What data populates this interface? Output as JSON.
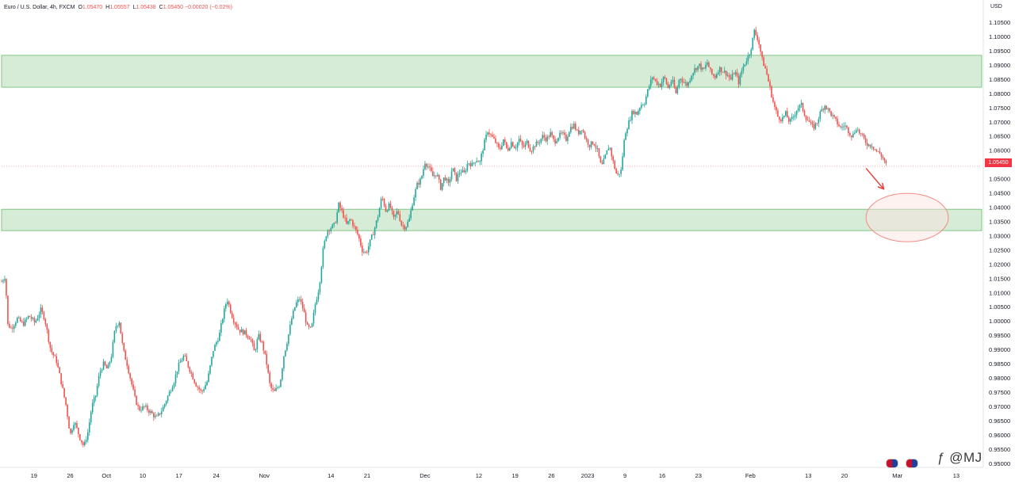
{
  "legend": {
    "symbol": "Euro / U.S. Dollar, 4h, FXCM",
    "open_label": "O",
    "open": "1.05470",
    "high_label": "H",
    "high": "1.05557",
    "low_label": "L",
    "low": "1.05438",
    "close_label": "C",
    "close": "1.05450",
    "change": "−0.00020 (−0.02%)"
  },
  "axis_unit": "USD",
  "current_price_label": "1.05450",
  "watermark": "@MJ",
  "colors": {
    "up": "#26a69a",
    "down": "#ef5350",
    "zone_fill": "#c8e6c9",
    "zone_border": "#66bb6a",
    "arrow": "#e53935",
    "target": "#f28b82"
  },
  "icons": [
    "flag-eu-us-icon",
    "flag-eu-us-icon-2",
    "tradingview-logo-icon"
  ],
  "chart_data": {
    "type": "candlestick",
    "y_label": "USD",
    "ylim": [
      0.9523,
      1.1085
    ],
    "y_ticks": [
      "1.10500",
      "1.10000",
      "1.09500",
      "1.09000",
      "1.08500",
      "1.08000",
      "1.07500",
      "1.07000",
      "1.06500",
      "1.06000",
      "1.05500",
      "1.05000",
      "1.04500",
      "1.04000",
      "1.03500",
      "1.03000",
      "1.02500",
      "1.02000",
      "1.01500",
      "1.01000",
      "1.00500",
      "1.00000",
      "0.99500",
      "0.99000",
      "0.98500",
      "0.98000",
      "0.97500",
      "0.97000",
      "0.96500",
      "0.96000",
      "0.95500",
      "0.95000"
    ],
    "x_ticks": [
      "19",
      "26",
      "Oct",
      "10",
      "17",
      "24",
      "Nov",
      "14",
      "21",
      "Dec",
      "12",
      "19",
      "26",
      "2023",
      "9",
      "16",
      "23",
      "Feb",
      "13",
      "20",
      "Mar",
      "13"
    ],
    "x_range": [
      0,
      1000
    ],
    "x_tick_positions": [
      33,
      70,
      107,
      144,
      181,
      219,
      268,
      336,
      373,
      432,
      487,
      524,
      561,
      598,
      636,
      674,
      711,
      764,
      823,
      860,
      914,
      974
    ],
    "zones": [
      {
        "name": "supply-zone",
        "y_top": 1.0935,
        "y_bottom": 1.0823
      },
      {
        "name": "demand-zone",
        "y_top": 1.0394,
        "y_bottom": 1.0319
      }
    ],
    "target_ellipse": {
      "x_center": 924,
      "y_center": 1.0365,
      "x_halfwidth": 42,
      "y_halfheight": 0.0085
    },
    "arrow": {
      "from": [
        882,
        1.0538
      ],
      "to": [
        900,
        1.0465
      ]
    },
    "current_price": 1.0545,
    "path": [
      [
        0,
        1.014
      ],
      [
        4,
        1.016
      ],
      [
        6,
        0.999
      ],
      [
        10,
        0.9975
      ],
      [
        16,
        1.001
      ],
      [
        22,
        0.999
      ],
      [
        28,
        1.002
      ],
      [
        34,
        0.9995
      ],
      [
        40,
        1.004
      ],
      [
        44,
        1.001
      ],
      [
        50,
        0.99
      ],
      [
        56,
        0.986
      ],
      [
        60,
        0.98
      ],
      [
        66,
        0.97
      ],
      [
        70,
        0.96
      ],
      [
        74,
        0.965
      ],
      [
        80,
        0.959
      ],
      [
        84,
        0.956
      ],
      [
        88,
        0.961
      ],
      [
        92,
        0.97
      ],
      [
        96,
        0.974
      ],
      [
        100,
        0.982
      ],
      [
        104,
        0.985
      ],
      [
        108,
        0.983
      ],
      [
        112,
        0.988
      ],
      [
        116,
        0.998
      ],
      [
        120,
        1.0
      ],
      [
        124,
        0.99
      ],
      [
        128,
        0.985
      ],
      [
        132,
        0.979
      ],
      [
        136,
        0.973
      ],
      [
        140,
        0.969
      ],
      [
        146,
        0.97
      ],
      [
        152,
        0.968
      ],
      [
        158,
        0.966
      ],
      [
        164,
        0.969
      ],
      [
        170,
        0.974
      ],
      [
        176,
        0.979
      ],
      [
        180,
        0.984
      ],
      [
        186,
        0.988
      ],
      [
        192,
        0.983
      ],
      [
        198,
        0.978
      ],
      [
        204,
        0.975
      ],
      [
        210,
        0.979
      ],
      [
        216,
        0.99
      ],
      [
        222,
        0.995
      ],
      [
        226,
        1.002
      ],
      [
        230,
        1.008
      ],
      [
        236,
        1.001
      ],
      [
        242,
        0.997
      ],
      [
        248,
        0.996
      ],
      [
        254,
        0.994
      ],
      [
        258,
        0.989
      ],
      [
        262,
        0.995
      ],
      [
        266,
        0.992
      ],
      [
        270,
        0.986
      ],
      [
        274,
        0.977
      ],
      [
        278,
        0.975
      ],
      [
        284,
        0.978
      ],
      [
        288,
        0.988
      ],
      [
        292,
        0.994
      ],
      [
        296,
        1.001
      ],
      [
        300,
        1.006
      ],
      [
        304,
        1.008
      ],
      [
        308,
        1.004
      ],
      [
        312,
        0.998
      ],
      [
        316,
        0.997
      ],
      [
        320,
        1.006
      ],
      [
        324,
        1.012
      ],
      [
        328,
        1.025
      ],
      [
        332,
        1.032
      ],
      [
        336,
        1.033
      ],
      [
        340,
        1.034
      ],
      [
        344,
        1.041
      ],
      [
        348,
        1.038
      ],
      [
        352,
        1.034
      ],
      [
        356,
        1.036
      ],
      [
        360,
        1.033
      ],
      [
        364,
        1.03
      ],
      [
        368,
        1.025
      ],
      [
        372,
        1.024
      ],
      [
        376,
        1.028
      ],
      [
        380,
        1.032
      ],
      [
        384,
        1.037
      ],
      [
        388,
        1.044
      ],
      [
        392,
        1.039
      ],
      [
        396,
        1.041
      ],
      [
        400,
        1.036
      ],
      [
        404,
        1.039
      ],
      [
        408,
        1.034
      ],
      [
        412,
        1.033
      ],
      [
        416,
        1.036
      ],
      [
        420,
        1.043
      ],
      [
        424,
        1.048
      ],
      [
        428,
        1.05
      ],
      [
        432,
        1.056
      ],
      [
        436,
        1.054
      ],
      [
        440,
        1.051
      ],
      [
        444,
        1.052
      ],
      [
        448,
        1.047
      ],
      [
        452,
        1.051
      ],
      [
        456,
        1.048
      ],
      [
        460,
        1.054
      ],
      [
        464,
        1.05
      ],
      [
        468,
        1.053
      ],
      [
        472,
        1.052
      ],
      [
        476,
        1.056
      ],
      [
        480,
        1.055
      ],
      [
        484,
        1.057
      ],
      [
        488,
        1.056
      ],
      [
        492,
        1.062
      ],
      [
        496,
        1.067
      ],
      [
        500,
        1.065
      ],
      [
        504,
        1.063
      ],
      [
        508,
        1.06
      ],
      [
        512,
        1.064
      ],
      [
        516,
        1.06
      ],
      [
        520,
        1.063
      ],
      [
        524,
        1.061
      ],
      [
        528,
        1.064
      ],
      [
        532,
        1.061
      ],
      [
        536,
        1.063
      ],
      [
        540,
        1.06
      ],
      [
        544,
        1.062
      ],
      [
        548,
        1.063
      ],
      [
        552,
        1.065
      ],
      [
        556,
        1.064
      ],
      [
        560,
        1.066
      ],
      [
        564,
        1.063
      ],
      [
        568,
        1.065
      ],
      [
        572,
        1.066
      ],
      [
        576,
        1.064
      ],
      [
        580,
        1.068
      ],
      [
        584,
        1.069
      ],
      [
        588,
        1.066
      ],
      [
        592,
        1.068
      ],
      [
        596,
        1.064
      ],
      [
        600,
        1.062
      ],
      [
        604,
        1.063
      ],
      [
        608,
        1.06
      ],
      [
        612,
        1.054
      ],
      [
        616,
        1.058
      ],
      [
        620,
        1.062
      ],
      [
        624,
        1.056
      ],
      [
        628,
        1.051
      ],
      [
        632,
        1.053
      ],
      [
        636,
        1.066
      ],
      [
        640,
        1.07
      ],
      [
        644,
        1.074
      ],
      [
        648,
        1.073
      ],
      [
        652,
        1.076
      ],
      [
        656,
        1.077
      ],
      [
        660,
        1.082
      ],
      [
        664,
        1.086
      ],
      [
        668,
        1.084
      ],
      [
        672,
        1.083
      ],
      [
        676,
        1.086
      ],
      [
        680,
        1.082
      ],
      [
        684,
        1.085
      ],
      [
        688,
        1.08
      ],
      [
        692,
        1.086
      ],
      [
        696,
        1.084
      ],
      [
        700,
        1.083
      ],
      [
        704,
        1.087
      ],
      [
        708,
        1.089
      ],
      [
        712,
        1.09
      ],
      [
        716,
        1.088
      ],
      [
        720,
        1.091
      ],
      [
        724,
        1.087
      ],
      [
        728,
        1.086
      ],
      [
        732,
        1.089
      ],
      [
        736,
        1.088
      ],
      [
        740,
        1.087
      ],
      [
        744,
        1.085
      ],
      [
        748,
        1.088
      ],
      [
        752,
        1.084
      ],
      [
        756,
        1.089
      ],
      [
        760,
        1.092
      ],
      [
        764,
        1.095
      ],
      [
        768,
        1.102
      ],
      [
        772,
        1.099
      ],
      [
        776,
        1.092
      ],
      [
        780,
        1.088
      ],
      [
        784,
        1.082
      ],
      [
        788,
        1.076
      ],
      [
        792,
        1.072
      ],
      [
        796,
        1.071
      ],
      [
        800,
        1.073
      ],
      [
        804,
        1.07
      ],
      [
        808,
        1.072
      ],
      [
        812,
        1.075
      ],
      [
        816,
        1.076
      ],
      [
        820,
        1.072
      ],
      [
        824,
        1.07
      ],
      [
        828,
        1.068
      ],
      [
        832,
        1.07
      ],
      [
        836,
        1.074
      ],
      [
        840,
        1.076
      ],
      [
        844,
        1.074
      ],
      [
        848,
        1.072
      ],
      [
        852,
        1.07
      ],
      [
        856,
        1.068
      ],
      [
        860,
        1.069
      ],
      [
        864,
        1.067
      ],
      [
        868,
        1.065
      ],
      [
        872,
        1.068
      ],
      [
        876,
        1.066
      ],
      [
        880,
        1.064
      ],
      [
        884,
        1.062
      ],
      [
        888,
        1.062
      ],
      [
        892,
        1.06
      ],
      [
        896,
        1.059
      ],
      [
        900,
        1.057
      ],
      [
        903,
        1.0545
      ]
    ]
  }
}
